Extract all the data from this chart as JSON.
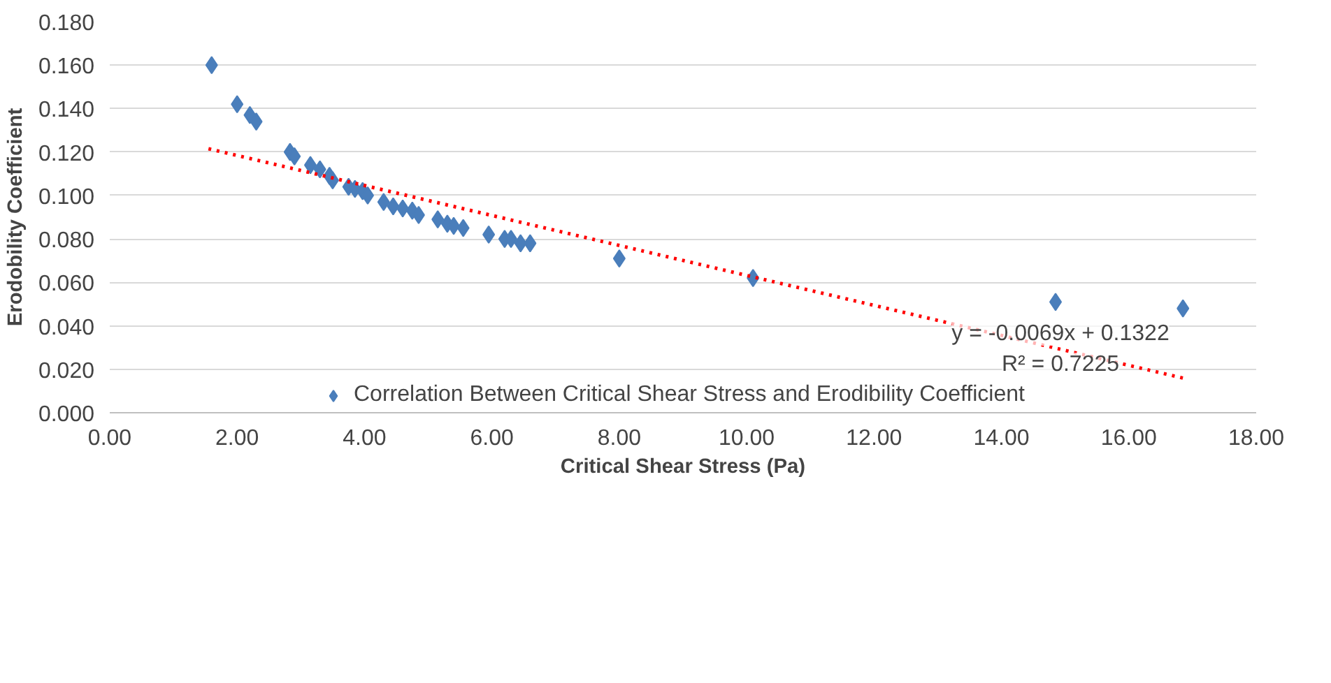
{
  "chart_data": {
    "type": "scatter",
    "xlabel": "Critical Shear Stress (Pa)",
    "ylabel": "Erodobility Coefficient",
    "xlim": [
      0,
      18
    ],
    "xticks": [
      {
        "value": 0,
        "label": "0.00"
      },
      {
        "value": 2,
        "label": "2.00"
      },
      {
        "value": 4,
        "label": "4.00"
      },
      {
        "value": 6,
        "label": "6.00"
      },
      {
        "value": 8,
        "label": "8.00"
      },
      {
        "value": 10,
        "label": "10.00"
      },
      {
        "value": 12,
        "label": "12.00"
      },
      {
        "value": 14,
        "label": "14.00"
      },
      {
        "value": 16,
        "label": "16.00"
      },
      {
        "value": 18,
        "label": "18.00"
      }
    ],
    "ylim": [
      0,
      0.18
    ],
    "yticks": [
      {
        "value": 0,
        "label": "0.000"
      },
      {
        "value": 0.02,
        "label": "0.020"
      },
      {
        "value": 0.04,
        "label": "0.040"
      },
      {
        "value": 0.06,
        "label": "0.060"
      },
      {
        "value": 0.08,
        "label": "0.080"
      },
      {
        "value": 0.1,
        "label": "0.100"
      },
      {
        "value": 0.12,
        "label": "0.120"
      },
      {
        "value": 0.14,
        "label": "0.140"
      },
      {
        "value": 0.16,
        "label": "0.160"
      },
      {
        "value": 0.18,
        "label": "0.180"
      }
    ],
    "grid": "y",
    "legend": "bottom",
    "marker": "diamond",
    "series": [
      {
        "name": "Correlation Between Critical Shear Stress and Erodibility Coefficient",
        "color": "#4a7ebb",
        "x": [
          1.6,
          2.0,
          2.2,
          2.3,
          2.83,
          2.9,
          3.15,
          3.3,
          3.45,
          3.5,
          3.75,
          3.85,
          3.97,
          4.05,
          4.3,
          4.45,
          4.6,
          4.75,
          4.85,
          5.15,
          5.3,
          5.4,
          5.55,
          5.95,
          6.2,
          6.3,
          6.45,
          6.6,
          8.0,
          10.1,
          14.85,
          16.85
        ],
        "values": [
          0.16,
          0.142,
          0.137,
          0.134,
          0.12,
          0.118,
          0.114,
          0.112,
          0.109,
          0.107,
          0.104,
          0.103,
          0.102,
          0.1,
          0.097,
          0.095,
          0.094,
          0.093,
          0.091,
          0.089,
          0.087,
          0.086,
          0.085,
          0.082,
          0.08,
          0.08,
          0.078,
          0.078,
          0.071,
          0.062,
          0.051,
          0.048
        ]
      },
      {
        "type": "line",
        "color": "#ff0000",
        "line_style": "dotted",
        "marker": "none",
        "x": [
          1.55,
          16.9
        ],
        "values": [
          0.1215,
          0.0156
        ]
      }
    ],
    "annotations": [
      "y = -0.0069x + 0.1322",
      "R² = 0.7225"
    ]
  }
}
